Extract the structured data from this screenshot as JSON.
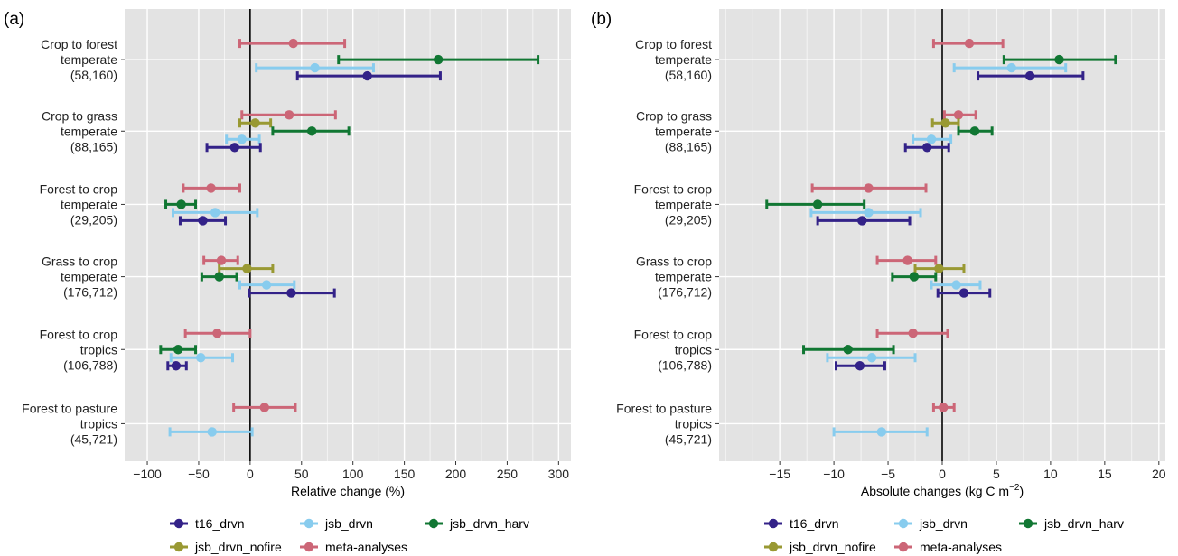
{
  "chart_data": [
    {
      "type": "scatter",
      "panel_label": "(a)",
      "xlabel": "Relative change (%)",
      "xlim": [
        -122,
        312
      ],
      "x_ticks": [
        "-100",
        "-50",
        "0",
        "50",
        "100",
        "150",
        "200",
        "250",
        "300"
      ],
      "x_tick_values": [
        -100,
        -50,
        0,
        50,
        100,
        150,
        200,
        250,
        300
      ],
      "grid": true,
      "zero_line": true,
      "categories": [
        [
          "Crop to forest",
          "temperate",
          "(58,160)"
        ],
        [
          "Crop to grass",
          "temperate",
          "(88,165)"
        ],
        [
          "Forest to crop",
          "temperate",
          "(29,205)"
        ],
        [
          "Grass to crop",
          "temperate",
          "(176,712)"
        ],
        [
          "Forest to crop",
          "tropics",
          "(106,788)"
        ],
        [
          "Forest to pasture",
          "tropics",
          "(45,721)"
        ]
      ],
      "series": [
        {
          "name": "meta-analyses",
          "color": "#CC6677",
          "points": [
            [
              42,
              -10,
              92
            ],
            [
              38,
              -8,
              83
            ],
            [
              -38,
              -65,
              -10
            ],
            [
              -28,
              -45,
              -12
            ],
            [
              -32,
              -63,
              0
            ],
            [
              14,
              -16,
              44
            ]
          ]
        },
        {
          "name": "jsb_drvn_nofire",
          "color": "#999933",
          "points": [
            null,
            [
              5,
              -10,
              20
            ],
            null,
            [
              -3,
              -30,
              22
            ],
            null,
            null
          ]
        },
        {
          "name": "jsb_drvn_harv",
          "color": "#117733",
          "points": [
            [
              183,
              86,
              280
            ],
            [
              60,
              22,
              96
            ],
            [
              -67,
              -82,
              -53
            ],
            [
              -30,
              -47,
              -13
            ],
            [
              -70,
              -87,
              -53
            ],
            null
          ]
        },
        {
          "name": "jsb_drvn",
          "color": "#88CCEE",
          "points": [
            [
              63,
              6,
              120
            ],
            [
              -8,
              -23,
              9
            ],
            [
              -34,
              -75,
              7
            ],
            [
              16,
              -10,
              43
            ],
            [
              -48,
              -77,
              -17
            ],
            [
              -37,
              -78,
              2
            ]
          ]
        },
        {
          "name": "t16_drvn",
          "color": "#332288",
          "points": [
            [
              114,
              46,
              185
            ],
            [
              -15,
              -42,
              10
            ],
            [
              -46,
              -68,
              -24
            ],
            [
              40,
              -1,
              82
            ],
            [
              -72,
              -80,
              -62
            ],
            null
          ]
        }
      ]
    },
    {
      "type": "scatter",
      "panel_label": "(b)",
      "xlabel": "Absolute changes (kg C m",
      "xlabel_sup": "−2",
      "xlabel_tail": ")",
      "xlim": [
        -20.6,
        20.6
      ],
      "x_ticks": [
        "-15",
        "-10",
        "-5",
        "0",
        "5",
        "10",
        "15",
        "20"
      ],
      "x_tick_values": [
        -15,
        -10,
        -5,
        0,
        5,
        10,
        15,
        20
      ],
      "grid": true,
      "zero_line": true,
      "categories": [
        [
          "Crop to forest",
          "temperate",
          "(58,160)"
        ],
        [
          "Crop to grass",
          "temperate",
          "(88,165)"
        ],
        [
          "Forest to crop",
          "temperate",
          "(29,205)"
        ],
        [
          "Grass to crop",
          "temperate",
          "(176,712)"
        ],
        [
          "Forest to crop",
          "tropics",
          "(106,788)"
        ],
        [
          "Forest to pasture",
          "tropics",
          "(45,721)"
        ]
      ],
      "series": [
        {
          "name": "meta-analyses",
          "color": "#CC6677",
          "points": [
            [
              2.5,
              -0.8,
              5.6
            ],
            [
              1.5,
              0.2,
              3.1
            ],
            [
              -6.8,
              -12.0,
              -1.5
            ],
            [
              -3.2,
              -6.0,
              -0.6
            ],
            [
              -2.7,
              -6.0,
              0.5
            ],
            [
              0.1,
              -0.8,
              1.1
            ]
          ]
        },
        {
          "name": "jsb_drvn_nofire",
          "color": "#999933",
          "points": [
            null,
            [
              0.3,
              -0.9,
              1.5
            ],
            null,
            [
              -0.3,
              -2.5,
              2.0
            ],
            null,
            null
          ]
        },
        {
          "name": "jsb_drvn_harv",
          "color": "#117733",
          "points": [
            [
              10.8,
              5.7,
              16.0
            ],
            [
              3.0,
              1.5,
              4.6
            ],
            [
              -11.5,
              -16.2,
              -7.2
            ],
            [
              -2.6,
              -4.6,
              -0.6
            ],
            [
              -8.7,
              -12.8,
              -4.5
            ],
            null
          ]
        },
        {
          "name": "jsb_drvn",
          "color": "#88CCEE",
          "points": [
            [
              6.4,
              1.1,
              11.4
            ],
            [
              -1.0,
              -2.7,
              0.8
            ],
            [
              -6.8,
              -12.1,
              -2.0
            ],
            [
              1.3,
              -1.0,
              3.5
            ],
            [
              -6.5,
              -10.6,
              -2.5
            ],
            [
              -5.6,
              -10.0,
              -1.4
            ]
          ]
        },
        {
          "name": "t16_drvn",
          "color": "#332288",
          "points": [
            [
              8.1,
              3.3,
              13.0
            ],
            [
              -1.4,
              -3.4,
              0.6
            ],
            [
              -7.4,
              -11.5,
              -3.0
            ],
            [
              2.0,
              -0.4,
              4.4
            ],
            [
              -7.6,
              -9.8,
              -5.3
            ],
            null
          ]
        }
      ]
    }
  ],
  "legend": [
    {
      "name": "t16_drvn",
      "color": "#332288"
    },
    {
      "name": "jsb_drvn",
      "color": "#88CCEE"
    },
    {
      "name": "jsb_drvn_harv",
      "color": "#117733"
    },
    {
      "name": "jsb_drvn_nofire",
      "color": "#999933"
    },
    {
      "name": "meta-analyses",
      "color": "#CC6677"
    }
  ]
}
